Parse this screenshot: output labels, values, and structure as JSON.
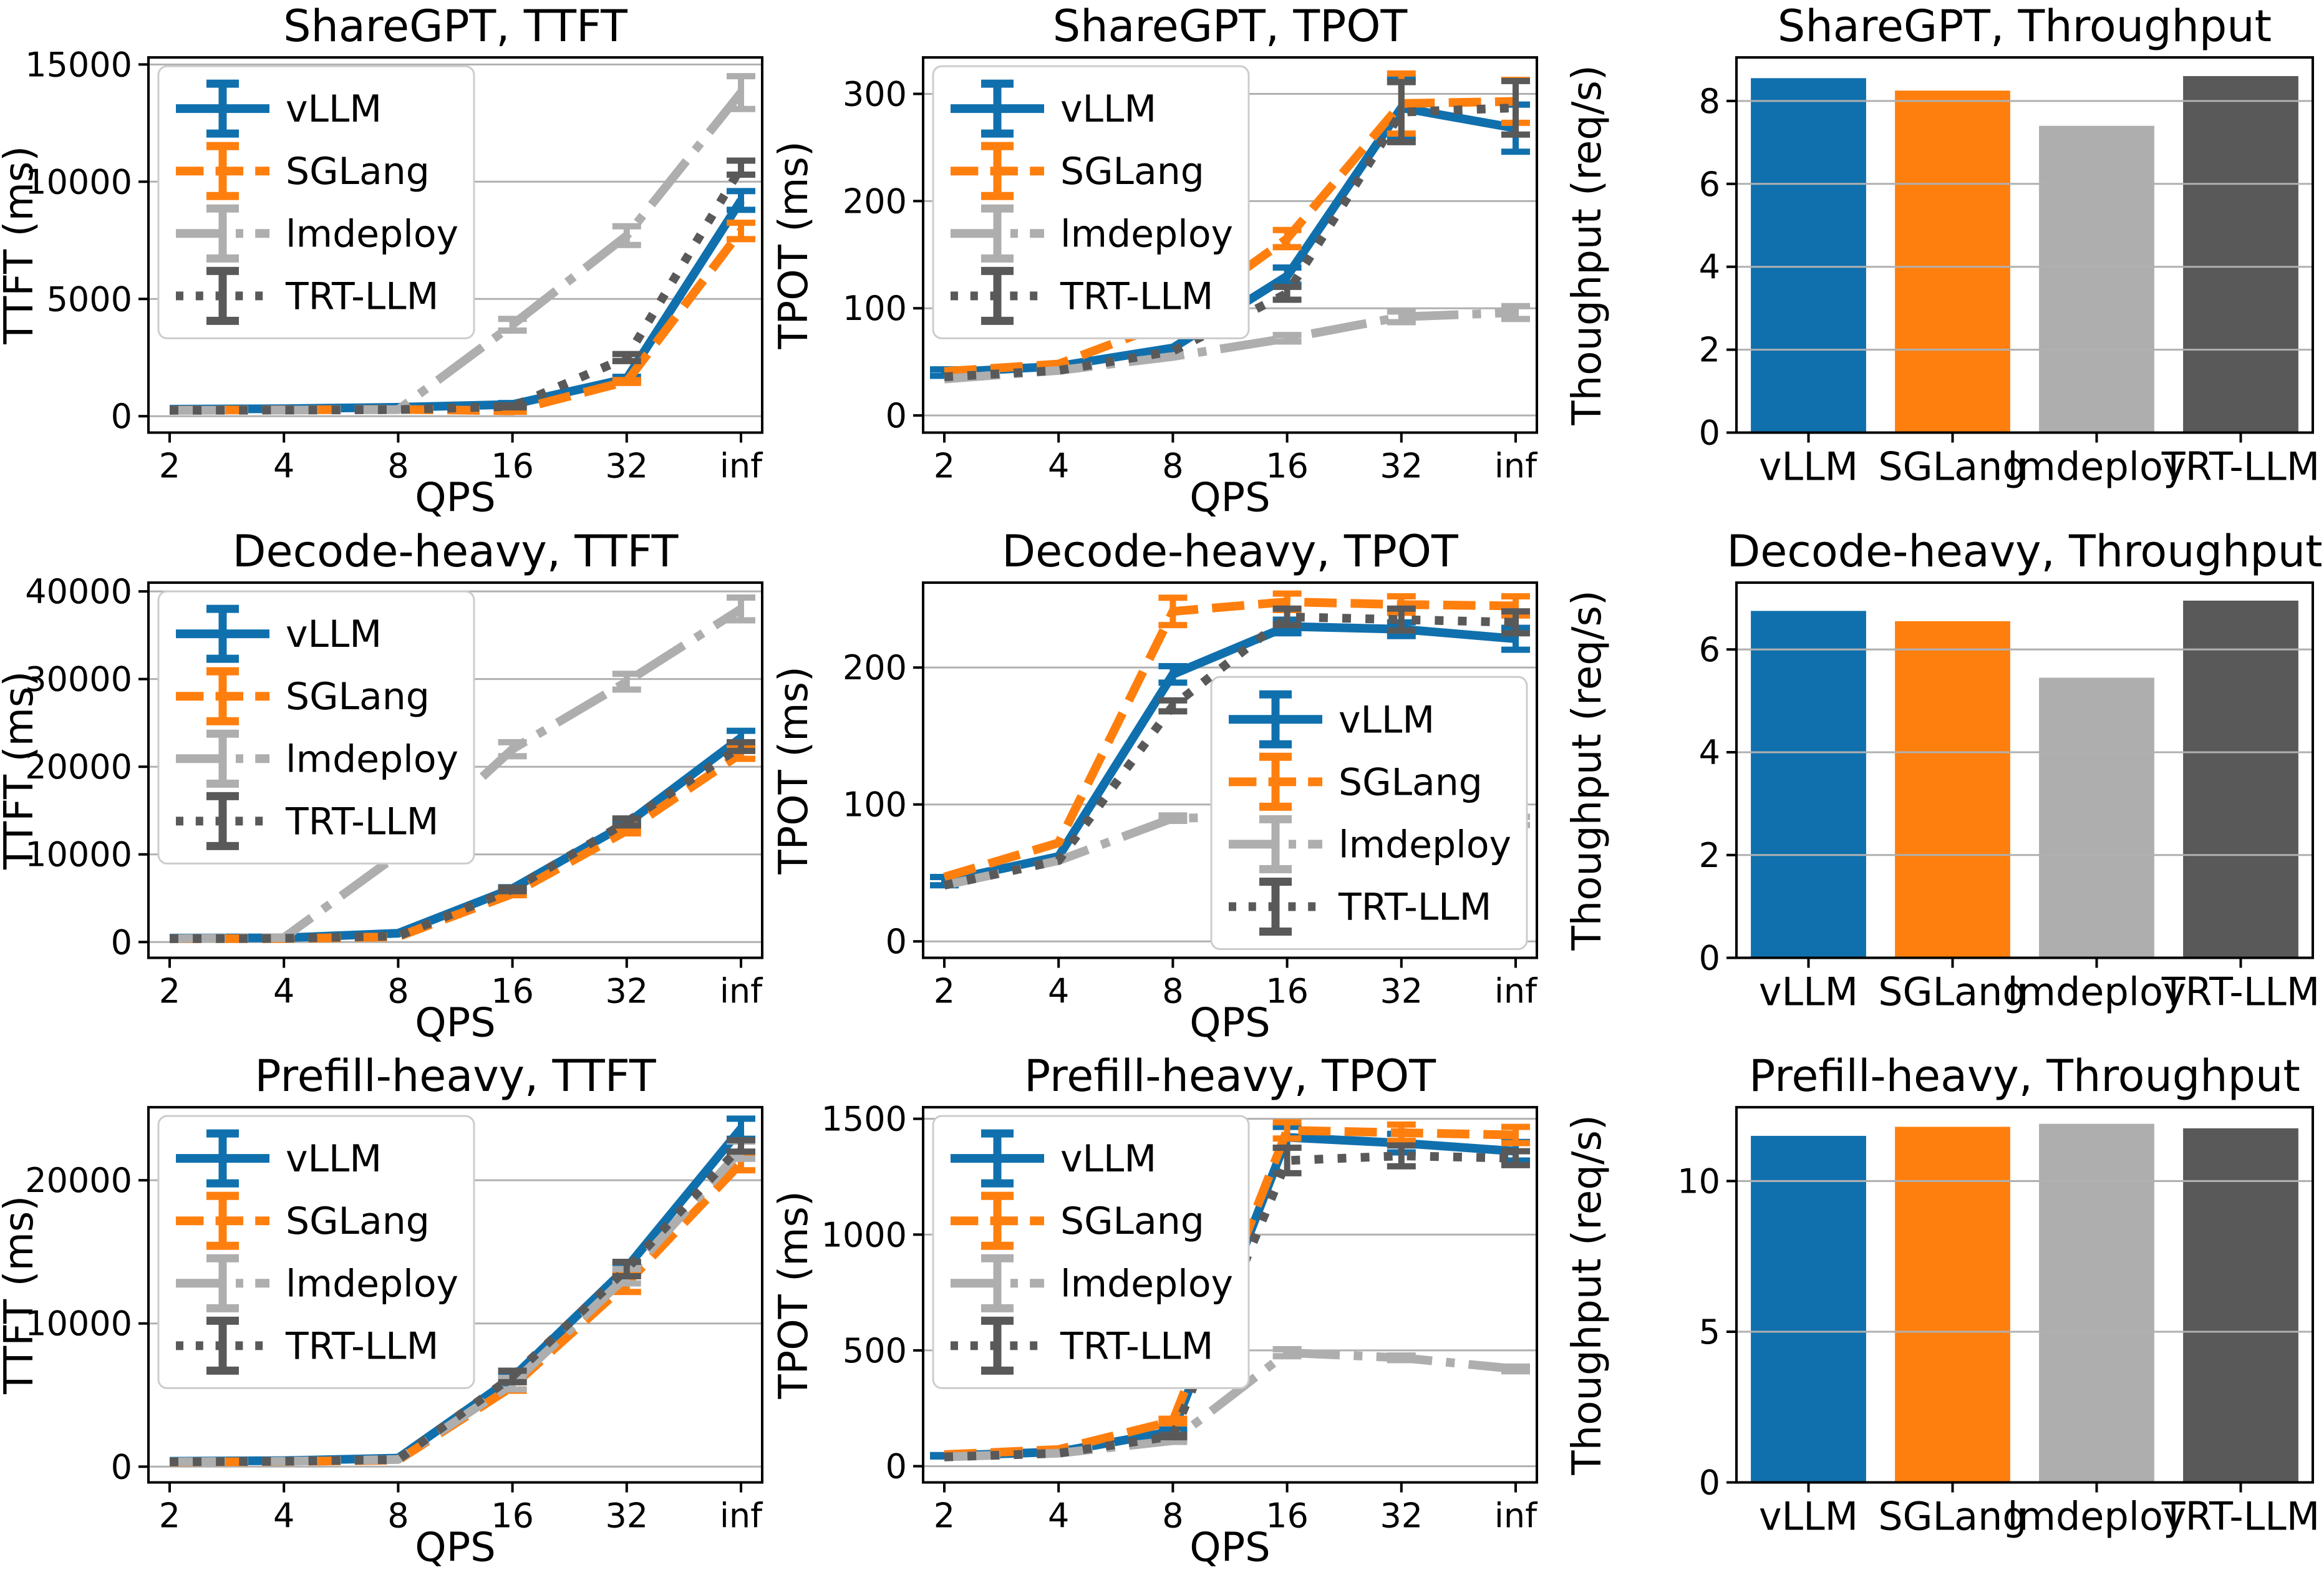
{
  "figure": {
    "background": "#ffffff",
    "grid_color": "#b0b0b0",
    "axis_color": "#000000",
    "legend_border_color": "#cccccc",
    "frameworks": [
      "vLLM",
      "SGLang",
      "lmdeploy",
      "TRT-LLM"
    ],
    "framework_colors": {
      "vLLM": "#1070ad",
      "SGLang": "#ff7f0e",
      "lmdeploy": "#aeaeae",
      "TRT-LLM": "#595959"
    }
  },
  "chart_data": [
    {
      "id": "sharegpt-ttft",
      "type": "line",
      "title": "ShareGPT, TTFT",
      "ylabel": "TTFT (ms)",
      "xlabel": "QPS",
      "x_categories": [
        "2",
        "4",
        "8",
        "16",
        "32",
        "inf"
      ],
      "yticks": [
        0,
        5000,
        10000,
        15000
      ],
      "ylim": [
        -700,
        15300
      ],
      "grid": true,
      "legend_loc": "upper-left",
      "series": [
        {
          "name": "vLLM",
          "color": "#1070ad",
          "style": "solid",
          "values": [
            300,
            320,
            380,
            500,
            1600,
            9200
          ],
          "errors": [
            0,
            0,
            0,
            60,
            80,
            400
          ]
        },
        {
          "name": "SGLang",
          "color": "#ff7f0e",
          "style": "dashed",
          "values": [
            260,
            270,
            290,
            230,
            1480,
            7900
          ],
          "errors": [
            0,
            0,
            0,
            40,
            60,
            350
          ]
        },
        {
          "name": "lmdeploy",
          "color": "#aeaeae",
          "style": "dashdot",
          "values": [
            250,
            260,
            280,
            3900,
            7700,
            13800
          ],
          "errors": [
            0,
            0,
            0,
            250,
            400,
            700
          ]
        },
        {
          "name": "TRT-LLM",
          "color": "#595959",
          "style": "dotted",
          "values": [
            250,
            260,
            280,
            420,
            2500,
            10600
          ],
          "errors": [
            0,
            0,
            0,
            40,
            150,
            300
          ]
        }
      ]
    },
    {
      "id": "sharegpt-tpot",
      "type": "line",
      "title": "ShareGPT, TPOT",
      "ylabel": "TPOT (ms)",
      "xlabel": "QPS",
      "x_categories": [
        "2",
        "4",
        "8",
        "16",
        "32",
        "inf"
      ],
      "yticks": [
        0,
        100,
        200,
        300
      ],
      "ylim": [
        -16,
        334
      ],
      "grid": true,
      "legend_loc": "upper-left",
      "series": [
        {
          "name": "vLLM",
          "color": "#1070ad",
          "style": "solid",
          "values": [
            40,
            46,
            63,
            130,
            287,
            268
          ],
          "errors": [
            3,
            0,
            0,
            8,
            28,
            22
          ]
        },
        {
          "name": "SGLang",
          "color": "#ff7f0e",
          "style": "dashed",
          "values": [
            41,
            48,
            88,
            165,
            291,
            293
          ],
          "errors": [
            0,
            0,
            4,
            8,
            28,
            20
          ]
        },
        {
          "name": "lmdeploy",
          "color": "#aeaeae",
          "style": "dashdot",
          "values": [
            34,
            42,
            55,
            72,
            92,
            96
          ],
          "errors": [
            0,
            0,
            0,
            3,
            5,
            6
          ]
        },
        {
          "name": "TRT-LLM",
          "color": "#595959",
          "style": "dotted",
          "values": [
            36,
            42,
            60,
            114,
            283,
            287
          ],
          "errors": [
            0,
            0,
            0,
            6,
            28,
            25
          ]
        }
      ]
    },
    {
      "id": "sharegpt-throughput",
      "type": "bar",
      "title": "ShareGPT, Throughput",
      "ylabel": "Thoughput (req/s)",
      "xlabel": "",
      "categories": [
        "vLLM",
        "SGLang",
        "lmdeploy",
        "TRT-LLM"
      ],
      "values": [
        8.55,
        8.25,
        7.4,
        8.6
      ],
      "bar_colors": [
        "#1070ad",
        "#ff7f0e",
        "#aeaeae",
        "#595959"
      ],
      "yticks": [
        0,
        2,
        4,
        6,
        8
      ],
      "ylim": [
        0,
        9.05
      ],
      "grid": true
    },
    {
      "id": "decode-heavy-ttft",
      "type": "line",
      "title": "Decode-heavy, TTFT",
      "ylabel": "TTFT (ms)",
      "xlabel": "QPS",
      "x_categories": [
        "2",
        "4",
        "8",
        "16",
        "32",
        "inf"
      ],
      "yticks": [
        0,
        10000,
        20000,
        30000,
        40000
      ],
      "ylim": [
        -1800,
        41000
      ],
      "grid": true,
      "legend_loc": "upper-left",
      "series": [
        {
          "name": "vLLM",
          "color": "#1070ad",
          "style": "solid",
          "values": [
            450,
            480,
            1000,
            6100,
            13500,
            23300
          ],
          "errors": [
            0,
            0,
            0,
            150,
            250,
            800
          ]
        },
        {
          "name": "SGLang",
          "color": "#ff7f0e",
          "style": "dashed",
          "values": [
            380,
            400,
            600,
            5500,
            12700,
            21500
          ],
          "errors": [
            0,
            0,
            0,
            150,
            300,
            600
          ]
        },
        {
          "name": "lmdeploy",
          "color": "#aeaeae",
          "style": "dashdot",
          "values": [
            400,
            500,
            10000,
            22000,
            29700,
            38000
          ],
          "errors": [
            0,
            0,
            600,
            800,
            900,
            1300
          ]
        },
        {
          "name": "TRT-LLM",
          "color": "#595959",
          "style": "dotted",
          "values": [
            380,
            420,
            700,
            6000,
            13700,
            22300
          ],
          "errors": [
            0,
            0,
            0,
            200,
            400,
            500
          ]
        }
      ]
    },
    {
      "id": "decode-heavy-tpot",
      "type": "line",
      "title": "Decode-heavy, TPOT",
      "ylabel": "TPOT (ms)",
      "xlabel": "QPS",
      "x_categories": [
        "2",
        "4",
        "8",
        "16",
        "32",
        "inf"
      ],
      "yticks": [
        0,
        100,
        200
      ],
      "ylim": [
        -12,
        262
      ],
      "grid": true,
      "legend_loc": "lower-right",
      "series": [
        {
          "name": "vLLM",
          "color": "#1070ad",
          "style": "solid",
          "values": [
            44,
            62,
            195,
            230,
            228,
            221
          ],
          "errors": [
            3,
            0,
            6,
            5,
            5,
            8
          ]
        },
        {
          "name": "SGLang",
          "color": "#ff7f0e",
          "style": "dashed",
          "values": [
            47,
            72,
            241,
            248,
            246,
            245
          ],
          "errors": [
            0,
            0,
            10,
            6,
            6,
            7
          ]
        },
        {
          "name": "lmdeploy",
          "color": "#aeaeae",
          "style": "dashdot",
          "values": [
            41,
            59,
            90,
            91,
            89,
            88
          ],
          "errors": [
            0,
            0,
            2,
            2,
            2,
            3
          ]
        },
        {
          "name": "TRT-LLM",
          "color": "#595959",
          "style": "dotted",
          "values": [
            41,
            59,
            172,
            237,
            235,
            233
          ],
          "errors": [
            0,
            0,
            4,
            6,
            8,
            8
          ]
        }
      ]
    },
    {
      "id": "decode-heavy-throughput",
      "type": "bar",
      "title": "Decode-heavy, Throughput",
      "ylabel": "Thoughput (req/s)",
      "xlabel": "",
      "categories": [
        "vLLM",
        "SGLang",
        "lmdeploy",
        "TRT-LLM"
      ],
      "values": [
        6.75,
        6.55,
        5.45,
        6.95
      ],
      "bar_colors": [
        "#1070ad",
        "#ff7f0e",
        "#aeaeae",
        "#595959"
      ],
      "yticks": [
        0,
        2,
        4,
        6
      ],
      "ylim": [
        0,
        7.3
      ],
      "grid": true
    },
    {
      "id": "prefill-heavy-ttft",
      "type": "line",
      "title": "Prefill-heavy, TTFT",
      "ylabel": "TTFT (ms)",
      "xlabel": "QPS",
      "x_categories": [
        "2",
        "4",
        "8",
        "16",
        "32",
        "inf"
      ],
      "yticks": [
        0,
        10000,
        20000
      ],
      "ylim": [
        -1100,
        25100
      ],
      "grid": true,
      "legend_loc": "upper-left",
      "series": [
        {
          "name": "vLLM",
          "color": "#1070ad",
          "style": "solid",
          "values": [
            380,
            420,
            600,
            6200,
            13900,
            23600
          ],
          "errors": [
            0,
            0,
            0,
            150,
            250,
            700
          ]
        },
        {
          "name": "SGLang",
          "color": "#ff7f0e",
          "style": "dashed",
          "values": [
            320,
            360,
            450,
            5600,
            12800,
            21200
          ],
          "errors": [
            0,
            0,
            0,
            300,
            600,
            500
          ]
        },
        {
          "name": "lmdeploy",
          "color": "#aeaeae",
          "style": "dashdot",
          "values": [
            340,
            380,
            500,
            5800,
            13300,
            22100
          ],
          "errors": [
            0,
            0,
            0,
            400,
            500,
            600
          ]
        },
        {
          "name": "TRT-LLM",
          "color": "#595959",
          "style": "dotted",
          "values": [
            330,
            380,
            500,
            6300,
            13800,
            22400
          ],
          "errors": [
            0,
            0,
            0,
            400,
            500,
            400
          ]
        }
      ]
    },
    {
      "id": "prefill-heavy-tpot",
      "type": "line",
      "title": "Prefill-heavy, TPOT",
      "ylabel": "TPOT (ms)",
      "xlabel": "QPS",
      "x_categories": [
        "2",
        "4",
        "8",
        "16",
        "32",
        "inf"
      ],
      "yticks": [
        0,
        500,
        1000,
        1500
      ],
      "ylim": [
        -70,
        1550
      ],
      "grid": true,
      "legend_loc": "upper-left",
      "series": [
        {
          "name": "vLLM",
          "color": "#1070ad",
          "style": "solid",
          "values": [
            45,
            62,
            150,
            1420,
            1395,
            1360
          ],
          "errors": [
            3,
            0,
            8,
            45,
            40,
            40
          ]
        },
        {
          "name": "SGLang",
          "color": "#ff7f0e",
          "style": "dashed",
          "values": [
            50,
            72,
            195,
            1450,
            1440,
            1430
          ],
          "errors": [
            0,
            0,
            10,
            35,
            35,
            35
          ]
        },
        {
          "name": "lmdeploy",
          "color": "#aeaeae",
          "style": "dashdot",
          "values": [
            40,
            56,
            110,
            490,
            468,
            420
          ],
          "errors": [
            0,
            0,
            5,
            15,
            10,
            10
          ]
        },
        {
          "name": "TRT-LLM",
          "color": "#595959",
          "style": "dotted",
          "values": [
            40,
            56,
            130,
            1320,
            1340,
            1330
          ],
          "errors": [
            0,
            0,
            5,
            55,
            45,
            30
          ]
        }
      ]
    },
    {
      "id": "prefill-heavy-throughput",
      "type": "bar",
      "title": "Prefill-heavy, Throughput",
      "ylabel": "Thoughput (req/s)",
      "xlabel": "",
      "categories": [
        "vLLM",
        "SGLang",
        "lmdeploy",
        "TRT-LLM"
      ],
      "values": [
        11.5,
        11.8,
        11.9,
        11.75
      ],
      "bar_colors": [
        "#1070ad",
        "#ff7f0e",
        "#aeaeae",
        "#595959"
      ],
      "yticks": [
        0,
        5,
        10
      ],
      "ylim": [
        0,
        12.45
      ],
      "grid": true
    }
  ]
}
